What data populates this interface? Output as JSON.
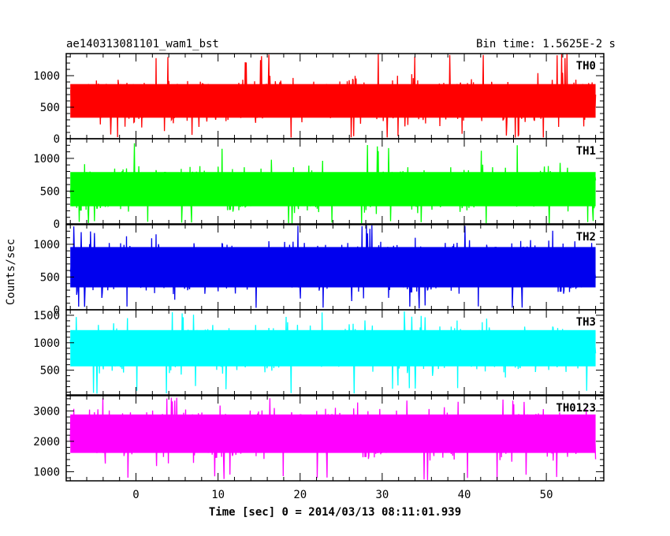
{
  "header": {
    "title": "ae140313081101_wam1_bst",
    "bin_time": "Bin time: 1.5625E-2 s"
  },
  "axes": {
    "ylabel": "Counts/sec",
    "xlabel": "Time [sec] 0 = 2014/03/13 08:11:01.939"
  },
  "chart_data": {
    "type": "line",
    "title": "ae140313081101_wam1_bst",
    "subtitle": "Bin time: 1.5625E-2 s",
    "xlabel": "Time [sec] 0 = 2014/03/13 08:11:01.939",
    "ylabel": "Counts/sec",
    "xlim": [
      -8.5,
      57
    ],
    "x_data_range": [
      -8,
      56
    ],
    "x_ticks": [
      0,
      10,
      20,
      30,
      40,
      50
    ],
    "panels": [
      {
        "name": "TH0",
        "color": "#ff0000",
        "ylim": [
          0,
          1350
        ],
        "y_ticks": [
          0,
          500,
          1000
        ],
        "mean": 600,
        "typical_min": 80,
        "typical_max": 1050,
        "peak_max": 1350
      },
      {
        "name": "TH1",
        "color": "#00ff00",
        "ylim": [
          0,
          1300
        ],
        "y_ticks": [
          0,
          500,
          1000
        ],
        "mean": 530,
        "typical_min": 50,
        "typical_max": 1000,
        "peak_max": 1250
      },
      {
        "name": "TH2",
        "color": "#0000ee",
        "ylim": [
          0,
          1300
        ],
        "y_ticks": [
          0,
          500,
          1000
        ],
        "mean": 650,
        "typical_min": 80,
        "typical_max": 1200,
        "peak_max": 1300
      },
      {
        "name": "TH3",
        "color": "#00ffff",
        "ylim": [
          50,
          1600
        ],
        "y_ticks": [
          500,
          1000,
          1500
        ],
        "mean": 900,
        "typical_min": 250,
        "typical_max": 1450,
        "peak_max": 1600
      },
      {
        "name": "TH0123",
        "color": "#ff00ff",
        "ylim": [
          700,
          3500
        ],
        "y_ticks": [
          1000,
          2000,
          3000
        ],
        "mean": 2250,
        "typical_min": 950,
        "typical_max": 3250,
        "peak_max": 3450
      }
    ]
  }
}
